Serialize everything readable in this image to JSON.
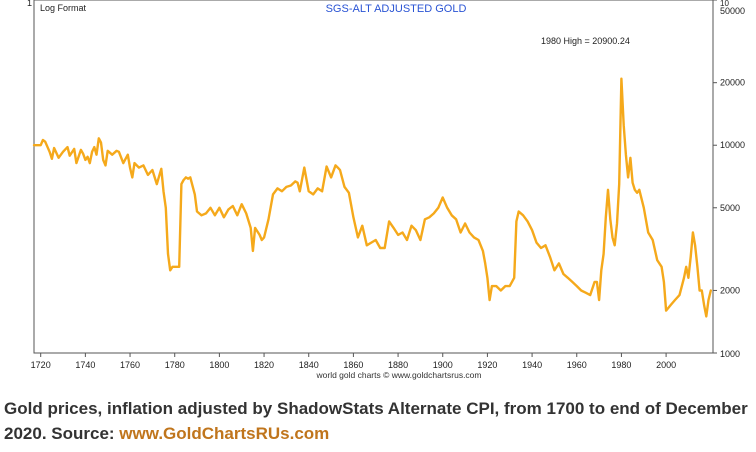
{
  "chart_data": {
    "type": "line",
    "title": "SGS-ALT ADJUSTED  GOLD",
    "corner_label": "Log Format",
    "annotation": "1980 High = 20900.24",
    "credit": "world gold charts © www.goldchartsrus.com",
    "y_scale": "log",
    "ylim": [
      1000,
      50000
    ],
    "xlim": [
      1717,
      2021
    ],
    "x_ticks": [
      1720,
      1740,
      1760,
      1780,
      1800,
      1820,
      1840,
      1860,
      1880,
      1900,
      1920,
      1940,
      1960,
      1980,
      2000
    ],
    "y_ticks": [
      1000,
      2000,
      5000,
      10000,
      20000,
      50000
    ],
    "y_tick_labels": [
      "1000",
      "2000",
      "5000",
      "10000",
      "20000",
      "50000"
    ],
    "y_top_prefix": "10",
    "left_top_label": "1",
    "line_color": "#f5a91b",
    "series": [
      {
        "name": "SGS-ALT Adjusted Gold",
        "x": [
          1717,
          1720,
          1721,
          1722,
          1724,
          1725,
          1726,
          1728,
          1730,
          1732,
          1733,
          1735,
          1736,
          1738,
          1739,
          1740,
          1741,
          1742,
          1743,
          1744,
          1745,
          1746,
          1747,
          1748,
          1749,
          1750,
          1752,
          1754,
          1755,
          1757,
          1759,
          1760,
          1761,
          1762,
          1764,
          1766,
          1768,
          1770,
          1772,
          1774,
          1775,
          1776,
          1777,
          1778,
          1779,
          1780,
          1782,
          1783,
          1784,
          1785,
          1786,
          1787,
          1789,
          1790,
          1792,
          1794,
          1796,
          1798,
          1800,
          1802,
          1804,
          1806,
          1808,
          1810,
          1812,
          1814,
          1815,
          1816,
          1818,
          1819,
          1820,
          1822,
          1824,
          1826,
          1828,
          1830,
          1832,
          1834,
          1835,
          1836,
          1838,
          1840,
          1842,
          1844,
          1846,
          1848,
          1850,
          1852,
          1853,
          1854,
          1856,
          1858,
          1860,
          1862,
          1864,
          1866,
          1868,
          1870,
          1872,
          1874,
          1876,
          1878,
          1880,
          1882,
          1884,
          1886,
          1888,
          1890,
          1892,
          1894,
          1896,
          1898,
          1900,
          1902,
          1904,
          1906,
          1908,
          1910,
          1912,
          1914,
          1916,
          1918,
          1919,
          1920,
          1921,
          1922,
          1924,
          1926,
          1928,
          1930,
          1932,
          1933,
          1934,
          1936,
          1938,
          1940,
          1942,
          1944,
          1946,
          1948,
          1950,
          1952,
          1954,
          1956,
          1958,
          1960,
          1962,
          1964,
          1966,
          1968,
          1969,
          1970,
          1971,
          1972,
          1973,
          1974,
          1975,
          1976,
          1977,
          1978,
          1979,
          1980,
          1981,
          1982,
          1983,
          1984,
          1985,
          1986,
          1987,
          1988,
          1990,
          1992,
          1994,
          1996,
          1998,
          1999,
          2000,
          2002,
          2004,
          2006,
          2008,
          2009,
          2010,
          2011,
          2012,
          2013,
          2014,
          2015,
          2016,
          2017,
          2018,
          2019,
          2020
        ],
        "values": [
          10000,
          10000,
          10600,
          10400,
          9300,
          8600,
          9700,
          8700,
          9300,
          9800,
          8900,
          9600,
          8200,
          9500,
          9100,
          8500,
          8800,
          8200,
          9300,
          9800,
          9000,
          10800,
          10300,
          8500,
          8000,
          9400,
          9000,
          9400,
          9300,
          8200,
          9000,
          7800,
          7000,
          8200,
          7800,
          8000,
          7200,
          7600,
          6500,
          7700,
          6000,
          5000,
          3000,
          2500,
          2600,
          2600,
          2600,
          6500,
          6800,
          7000,
          6900,
          7000,
          5800,
          4800,
          4600,
          4700,
          5000,
          4600,
          5000,
          4500,
          4900,
          5100,
          4600,
          5200,
          4700,
          4000,
          3100,
          4000,
          3700,
          3500,
          3600,
          4400,
          5800,
          6200,
          6000,
          6300,
          6400,
          6700,
          6600,
          6000,
          7800,
          6000,
          5800,
          6200,
          6000,
          7900,
          7000,
          8000,
          7800,
          7600,
          6300,
          5900,
          4500,
          3600,
          4100,
          3300,
          3400,
          3500,
          3200,
          3200,
          4300,
          4000,
          3700,
          3800,
          3500,
          4100,
          3900,
          3500,
          4400,
          4500,
          4700,
          5000,
          5600,
          5000,
          4600,
          4400,
          3800,
          4200,
          3800,
          3600,
          3500,
          3100,
          2700,
          2300,
          1800,
          2100,
          2100,
          2000,
          2100,
          2100,
          2300,
          4300,
          4800,
          4600,
          4300,
          3900,
          3400,
          3200,
          3300,
          2900,
          2500,
          2700,
          2400,
          2300,
          2200,
          2100,
          2000,
          1950,
          1900,
          2200,
          2200,
          1800,
          2500,
          3000,
          4500,
          6100,
          4400,
          3600,
          3300,
          4200,
          6500,
          20900,
          12500,
          9000,
          7000,
          8700,
          6600,
          6100,
          5900,
          6100,
          5000,
          3800,
          3500,
          2800,
          2600,
          2200,
          1600,
          1700,
          1800,
          1900,
          2300,
          2600,
          2300,
          2900,
          3800,
          3300,
          2600,
          2000,
          2000,
          1700,
          1500,
          1800,
          2000
        ]
      }
    ]
  },
  "caption": {
    "text": "Gold prices, inflation adjusted by ShadowStats Alternate CPI, from 1700 to end of December 2020. Source: ",
    "source": "www.GoldChartsRUs.com"
  }
}
